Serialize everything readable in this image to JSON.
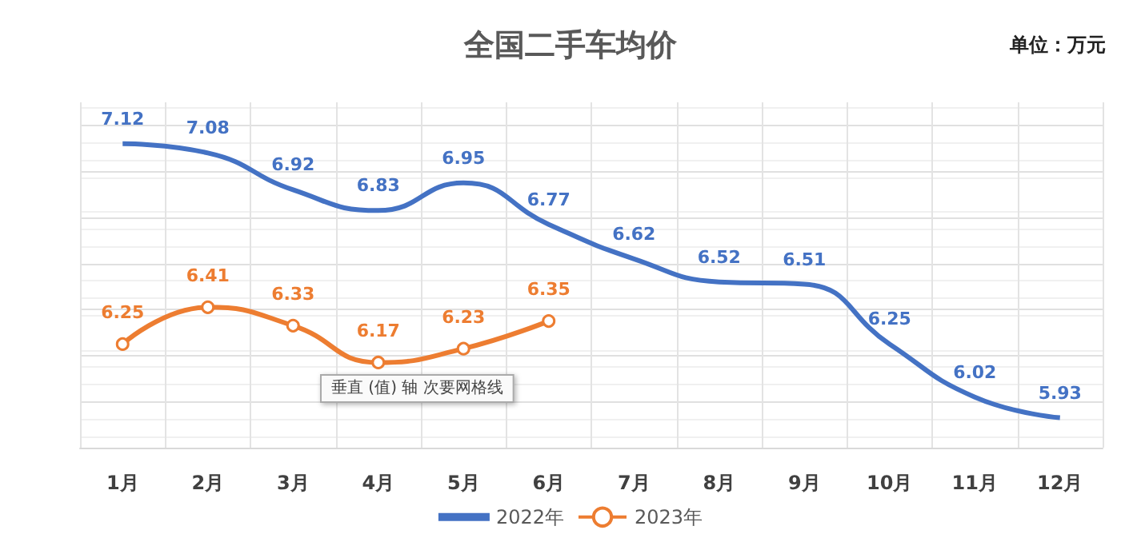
{
  "chart_data": {
    "type": "line",
    "title": "全国二手车均价",
    "annotations": [
      "单位：万元",
      "垂直 (值) 轴 次要网格线"
    ],
    "categories": [
      "1月",
      "2月",
      "3月",
      "4月",
      "5月",
      "6月",
      "7月",
      "8月",
      "9月",
      "10月",
      "11月",
      "12月"
    ],
    "series": [
      {
        "name": "2022年",
        "color": "#4472c4",
        "marker": "none",
        "values": [
          7.12,
          7.08,
          6.92,
          6.83,
          6.95,
          6.77,
          6.62,
          6.52,
          6.51,
          6.25,
          6.02,
          5.93
        ]
      },
      {
        "name": "2023年",
        "color": "#ed7d31",
        "marker": "circle",
        "values": [
          6.25,
          6.41,
          6.33,
          6.17,
          6.23,
          6.35,
          null,
          null,
          null,
          null,
          null,
          null
        ]
      }
    ],
    "ylim": [
      5.8,
      7.3
    ],
    "yticks": [
      {
        "value": 5.8,
        "label": null
      },
      {
        "value": 6.0,
        "label": null
      },
      {
        "value": 6.2,
        "label": null
      },
      {
        "value": 6.4,
        "label": null
      },
      {
        "value": 6.6,
        "label": null
      },
      {
        "value": 6.8,
        "label": null
      },
      {
        "value": 7.0,
        "label": null
      },
      {
        "value": 7.2,
        "label": null
      }
    ],
    "tick_labels": "x",
    "grid": true,
    "legend": "bottom",
    "data_labels": true,
    "line_style": "solid"
  }
}
